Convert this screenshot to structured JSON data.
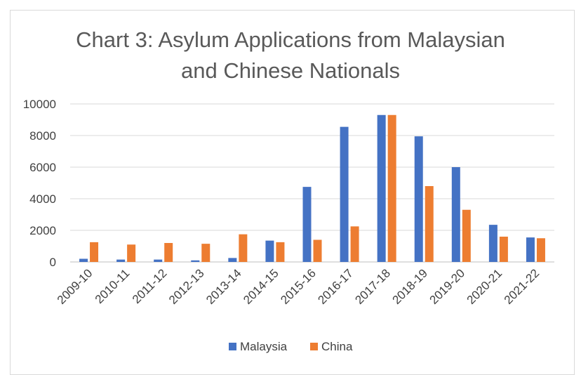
{
  "chart_data": {
    "type": "bar",
    "title": "Chart 3: Asylum Applications from Malaysian and Chinese Nationals",
    "title_lines": [
      "Chart 3: Asylum Applications from Malaysian",
      "and Chinese Nationals"
    ],
    "categories": [
      "2009-10",
      "2010-11",
      "2011-12",
      "2012-13",
      "2013-14",
      "2014-15",
      "2015-16",
      "2016-17",
      "2017-18",
      "2018-19",
      "2019-20",
      "2020-21",
      "2021-22"
    ],
    "series": [
      {
        "name": "Malaysia",
        "color": "#4472c4",
        "values": [
          200,
          150,
          150,
          100,
          250,
          1350,
          4750,
          8550,
          9300,
          7950,
          6000,
          2350,
          1550
        ]
      },
      {
        "name": "China",
        "color": "#ed7d31",
        "values": [
          1250,
          1100,
          1200,
          1150,
          1750,
          1250,
          1400,
          2250,
          9300,
          4800,
          3300,
          1600,
          1500
        ]
      }
    ],
    "ylim": [
      0,
      10000
    ],
    "yticks": [
      0,
      2000,
      4000,
      6000,
      8000,
      10000
    ],
    "xlabel": "",
    "ylabel": "",
    "grid": true,
    "legend": "bottom"
  }
}
